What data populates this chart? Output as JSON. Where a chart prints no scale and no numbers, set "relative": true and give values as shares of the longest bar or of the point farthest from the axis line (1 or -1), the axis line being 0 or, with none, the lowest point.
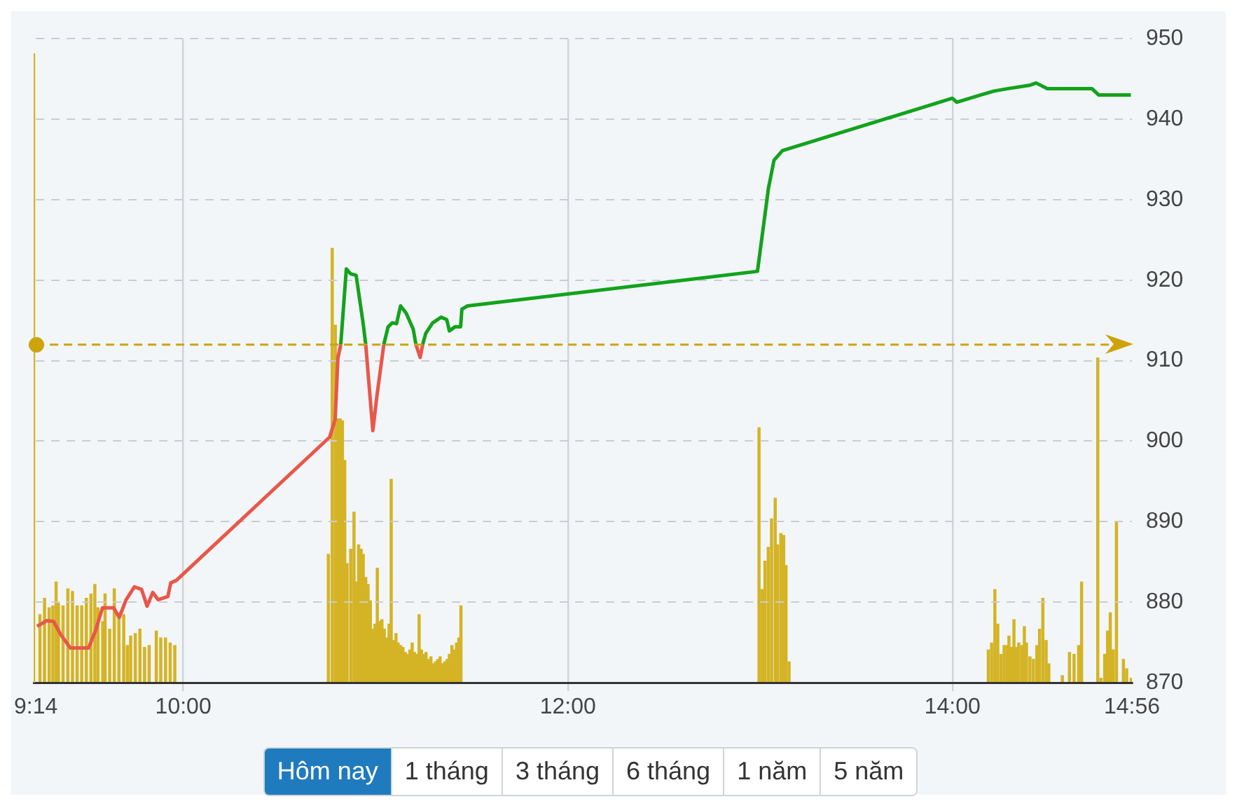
{
  "chart_data": [
    {
      "type": "line",
      "x": [
        9.24,
        9.29,
        9.326,
        9.362,
        9.413,
        9.507,
        9.543,
        9.58,
        9.638,
        9.667,
        9.703,
        9.746,
        9.783,
        9.812,
        9.841,
        9.87,
        9.92,
        9.935,
        9.964,
        10.761,
        10.79,
        10.804,
        10.819,
        10.848,
        10.87,
        10.899,
        10.935,
        10.949,
        10.971,
        10.986,
        11.007,
        11.043,
        11.065,
        11.087,
        11.109,
        11.13,
        11.159,
        11.196,
        11.21,
        11.232,
        11.245,
        11.261,
        11.297,
        11.341,
        11.37,
        11.384,
        11.413,
        11.442,
        11.449,
        11.478,
        12.986,
        13.043,
        13.072,
        13.116,
        14.0,
        14.022,
        14.145,
        14.217,
        14.29,
        14.399,
        14.435,
        14.493,
        14.725,
        14.761,
        14.928
      ],
      "series": [
        {
          "color": "#e8574a",
          "values": [
            877.0,
            877.7,
            877.6,
            876.0,
            874.3,
            874.3,
            876.4,
            879.3,
            879.3,
            878.1,
            880.3,
            881.9,
            881.6,
            879.5,
            881.2,
            880.3,
            880.7,
            882.4,
            882.7,
            900.5,
            902.7,
            910.3,
            912,
            null,
            null,
            null,
            null,
            912,
            905.6,
            901.3,
            905.6,
            912,
            null,
            null,
            null,
            null,
            null,
            null,
            912,
            910.4,
            912,
            null,
            null,
            null,
            null,
            null,
            null,
            null,
            null,
            null,
            null,
            null,
            null,
            null,
            null,
            null,
            null,
            null,
            null,
            null,
            null,
            null,
            null,
            null,
            null
          ]
        },
        {
          "color": "#12a31c",
          "values": [
            null,
            null,
            null,
            null,
            null,
            null,
            null,
            null,
            null,
            null,
            null,
            null,
            null,
            null,
            null,
            null,
            null,
            null,
            null,
            null,
            null,
            null,
            912,
            921.4,
            920.8,
            920.6,
            914.7,
            912,
            null,
            null,
            null,
            912,
            914.2,
            914.7,
            914.6,
            916.8,
            915.9,
            913.9,
            912,
            null,
            912,
            913.4,
            914.7,
            915.4,
            915.1,
            913.7,
            914.2,
            914.2,
            916.4,
            916.8,
            921.1,
            931.4,
            934.9,
            936.1,
            942.6,
            942.1,
            943.0,
            943.5,
            943.8,
            944.2,
            944.5,
            943.8,
            943.8,
            943.0,
            943.0
          ]
        }
      ],
      "xlim": [
        9.2333,
        14.9333
      ],
      "xticks": [
        {
          "value": 9.2333,
          "label": "9:14"
        },
        {
          "value": 10,
          "label": "10:00"
        },
        {
          "value": 12,
          "label": "12:00"
        },
        {
          "value": 14,
          "label": "14:00"
        },
        {
          "value": 14.9333,
          "label": "14:56"
        }
      ],
      "ylim": [
        870,
        950
      ],
      "yticks": [
        870,
        880,
        890,
        900,
        910,
        920,
        930,
        940,
        950
      ],
      "grid": true,
      "marker": "none",
      "ref_lines": [
        {
          "axis": "y",
          "value": 912,
          "color": "#cda40c",
          "line_style": "dashed"
        }
      ],
      "annotations": [
        "Hôm nay",
        "1 tháng",
        "3 tháng",
        "6 tháng",
        "1 năm",
        "5 năm"
      ]
    },
    {
      "type": "bar",
      "relative": true,
      "tick_labels": false,
      "color": "#d4b425",
      "xlim": [
        9.2333,
        14.9333
      ],
      "x": [
        9.2333,
        9.266,
        9.29,
        9.314,
        9.333,
        9.35,
        9.362,
        9.386,
        9.411,
        9.435,
        9.459,
        9.483,
        9.507,
        9.531,
        9.551,
        9.567,
        9.592,
        9.604,
        9.628,
        9.652,
        9.676,
        9.701,
        9.72,
        9.737,
        9.761,
        9.785,
        9.809,
        9.833,
        9.87,
        9.893,
        9.918,
        9.942,
        9.966,
        10.763,
        10.783,
        10.799,
        10.812,
        10.824,
        10.836,
        10.848,
        10.86,
        10.879,
        10.896,
        10.908,
        10.92,
        10.933,
        10.944,
        10.957,
        10.969,
        10.981,
        10.993,
        11.005,
        11.017,
        11.029,
        11.041,
        11.053,
        11.065,
        11.078,
        11.089,
        11.101,
        11.114,
        11.125,
        11.138,
        11.15,
        11.162,
        11.174,
        11.186,
        11.198,
        11.21,
        11.222,
        11.234,
        11.246,
        11.259,
        11.27,
        11.283,
        11.295,
        11.307,
        11.319,
        11.331,
        11.343,
        11.355,
        11.367,
        11.379,
        11.391,
        11.404,
        11.415,
        11.428,
        11.44,
        11.451,
        12.998,
        13.014,
        13.029,
        13.046,
        13.063,
        13.082,
        13.094,
        13.111,
        13.126,
        13.138,
        13.154,
        14.188,
        14.205,
        14.222,
        14.237,
        14.254,
        14.27,
        14.285,
        14.295,
        14.309,
        14.321,
        14.333,
        14.346,
        14.362,
        14.375,
        14.386,
        14.404,
        14.422,
        14.44,
        14.454,
        14.471,
        14.488,
        14.502,
        14.572,
        14.609,
        14.633,
        14.657,
        14.672,
        14.756,
        14.773,
        14.792,
        14.807,
        14.821,
        14.836,
        14.853,
        14.889,
        14.906,
        14.93
      ],
      "values": [
        1,
        0.108,
        0.134,
        0.119,
        0.122,
        0.16,
        0.126,
        0.122,
        0.149,
        0.145,
        0.122,
        0.122,
        0.134,
        0.141,
        0.156,
        0.119,
        0.097,
        0.141,
        0.085,
        0.149,
        0.111,
        0.108,
        0.059,
        0.074,
        0.078,
        0.085,
        0.056,
        0.059,
        0.082,
        0.071,
        0.071,
        0.063,
        0.059,
        0.204,
        0.69,
        0.568,
        0.419,
        0.419,
        0.416,
        0.353,
        0.189,
        0.212,
        0.271,
        0.16,
        0.219,
        0.212,
        0.204,
        0.167,
        0.156,
        0.13,
        0.085,
        0.093,
        0.182,
        0.097,
        0.1,
        0.085,
        0.071,
        0.093,
        0.323,
        0.067,
        0.078,
        0.063,
        0.059,
        0.056,
        0.048,
        0.045,
        0.052,
        0.063,
        0.048,
        0.045,
        0.108,
        0.052,
        0.045,
        0.048,
        0.037,
        0.041,
        0.03,
        0.033,
        0.037,
        0.041,
        0.03,
        0.033,
        0.037,
        0.045,
        0.059,
        0.052,
        0.063,
        0.071,
        0.122,
        0.405,
        0.148,
        0.193,
        0.215,
        0.26,
        0.293,
        0.219,
        0.237,
        0.234,
        0.186,
        0.033,
        0.052,
        0.063,
        0.148,
        0.093,
        0.045,
        0.059,
        0.059,
        0.074,
        0.056,
        0.1,
        0.056,
        0.063,
        0.059,
        0.089,
        0.063,
        0.041,
        0.037,
        0.059,
        0.085,
        0.134,
        0.067,
        0.03,
        0.011,
        0.048,
        0.045,
        0.059,
        0.16,
        0.516,
        0.007,
        0.045,
        0.082,
        0.111,
        0.052,
        0.256,
        0.037,
        0.022,
        0.007
      ]
    }
  ]
}
